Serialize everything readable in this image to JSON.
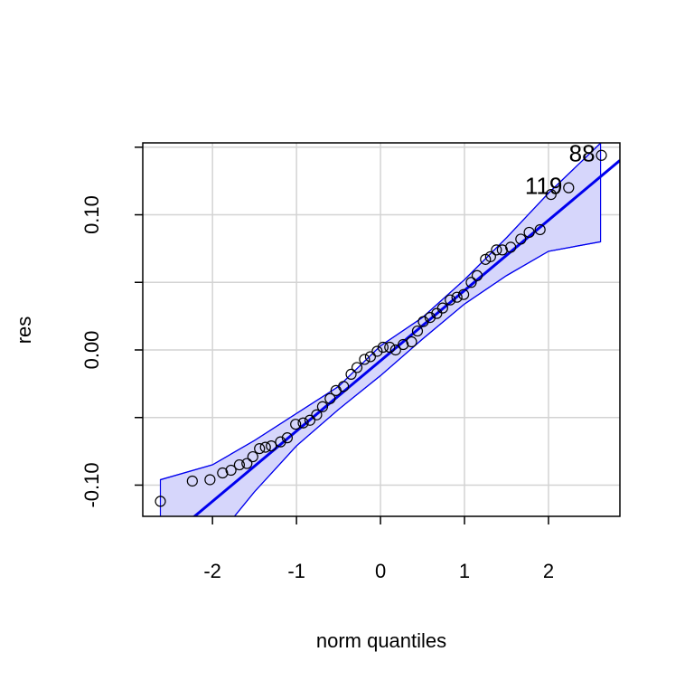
{
  "chart_data": {
    "type": "qqplot",
    "x_label": "norm quantiles",
    "y_label": "res",
    "xlim": [
      -2.83,
      2.85
    ],
    "ylim": [
      -0.1231,
      0.1532
    ],
    "xticks": [
      -2,
      -1,
      0,
      1,
      2
    ],
    "yticks": [
      {
        "value": -0.1,
        "label": "-0.10"
      },
      {
        "value": 0,
        "label": "0.00"
      },
      {
        "value": 0.1,
        "label": "0.10"
      }
    ],
    "yminorticks": [
      -0.05,
      0.05,
      0.15
    ],
    "grid": true,
    "point_color": "#000000",
    "line_color": "#0000ee",
    "band_color": "#d6d6fb",
    "line": {
      "intercept": -0.008,
      "slope": 0.052
    },
    "x": [
      -2.62,
      -2.24,
      -2.03,
      -1.88,
      -1.78,
      -1.68,
      -1.59,
      -1.52,
      -1.44,
      -1.37,
      -1.3,
      -1.19,
      -1.11,
      -1.01,
      -0.92,
      -0.84,
      -0.76,
      -0.69,
      -0.6,
      -0.53,
      -0.44,
      -0.35,
      -0.28,
      -0.19,
      -0.12,
      -0.04,
      0.03,
      0.11,
      0.18,
      0.27,
      0.37,
      0.44,
      0.51,
      0.59,
      0.67,
      0.74,
      0.83,
      0.91,
      0.99,
      1.08,
      1.15,
      1.25,
      1.31,
      1.38,
      1.45,
      1.55,
      1.67,
      1.77,
      1.9,
      2.03,
      2.24,
      2.63
    ],
    "y": [
      -0.112,
      -0.097,
      -0.096,
      -0.091,
      -0.089,
      -0.085,
      -0.084,
      -0.079,
      -0.073,
      -0.072,
      -0.071,
      -0.068,
      -0.065,
      -0.055,
      -0.054,
      -0.052,
      -0.048,
      -0.042,
      -0.036,
      -0.03,
      -0.027,
      -0.018,
      -0.013,
      -0.007,
      -0.005,
      -0.001,
      0.002,
      0.002,
      0.0,
      0.004,
      0.006,
      0.014,
      0.021,
      0.024,
      0.027,
      0.031,
      0.037,
      0.039,
      0.041,
      0.05,
      0.055,
      0.067,
      0.069,
      0.074,
      0.074,
      0.076,
      0.082,
      0.087,
      0.089,
      0.115,
      0.12,
      0.144
    ],
    "point_labels": [
      null,
      null,
      null,
      null,
      null,
      null,
      null,
      null,
      null,
      null,
      null,
      null,
      null,
      null,
      null,
      null,
      null,
      null,
      null,
      null,
      null,
      null,
      null,
      null,
      null,
      null,
      null,
      null,
      null,
      null,
      null,
      null,
      null,
      null,
      null,
      null,
      null,
      null,
      null,
      null,
      null,
      null,
      null,
      null,
      null,
      null,
      null,
      null,
      null,
      null,
      "119",
      "88"
    ],
    "envelope": {
      "x": [
        -2.62,
        -2,
        -1.5,
        -1,
        -0.5,
        0,
        0.5,
        1,
        1.5,
        2,
        2.62
      ],
      "upper": [
        -0.096,
        -0.085,
        -0.067,
        -0.047,
        -0.027,
        0.003,
        0.024,
        0.052,
        0.083,
        0.116,
        0.153
      ],
      "lower": [
        -0.17,
        -0.143,
        -0.105,
        -0.071,
        -0.044,
        -0.019,
        0.008,
        0.034,
        0.055,
        0.073,
        0.08
      ]
    }
  }
}
